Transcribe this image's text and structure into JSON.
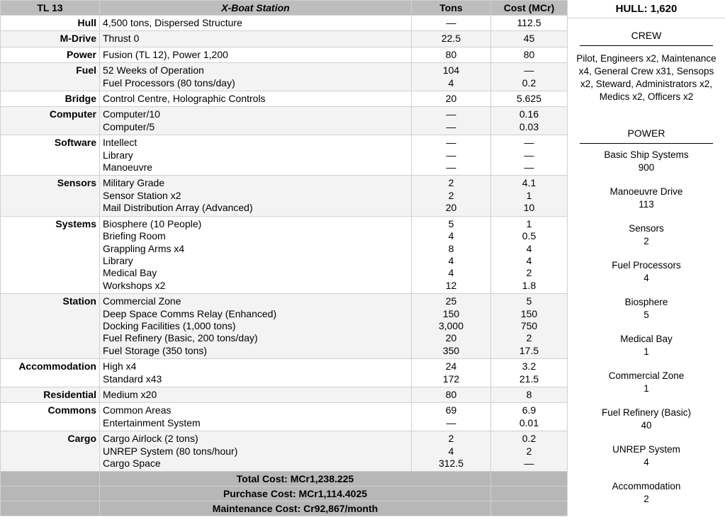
{
  "header": {
    "tl": "TL 13",
    "title": "X-Boat Station",
    "tons": "Tons",
    "cost": "Cost (MCr)"
  },
  "rows": [
    {
      "label": "Hull",
      "items": [
        {
          "desc": "4,500 tons, Dispersed Structure",
          "tons": "—",
          "cost": "112.5"
        }
      ]
    },
    {
      "label": "M-Drive",
      "items": [
        {
          "desc": "Thrust 0",
          "tons": "22.5",
          "cost": "45"
        }
      ]
    },
    {
      "label": "Power",
      "items": [
        {
          "desc": "Fusion (TL 12), Power 1,200",
          "tons": "80",
          "cost": "80"
        }
      ]
    },
    {
      "label": "Fuel",
      "items": [
        {
          "desc": "52 Weeks of Operation",
          "tons": "104",
          "cost": "—"
        },
        {
          "desc": "Fuel Processors (80 tons/day)",
          "tons": "4",
          "cost": "0.2"
        }
      ]
    },
    {
      "label": "Bridge",
      "items": [
        {
          "desc": "Control Centre, Holographic Controls",
          "tons": "20",
          "cost": "5.625"
        }
      ]
    },
    {
      "label": "Computer",
      "items": [
        {
          "desc": "Computer/10",
          "tons": "—",
          "cost": "0.16"
        },
        {
          "desc": "Computer/5",
          "tons": "—",
          "cost": "0.03"
        }
      ]
    },
    {
      "label": "Software",
      "items": [
        {
          "desc": "Intellect",
          "tons": "—",
          "cost": "—"
        },
        {
          "desc": "Library",
          "tons": "—",
          "cost": "—"
        },
        {
          "desc": "Manoeuvre",
          "tons": "—",
          "cost": "—"
        }
      ]
    },
    {
      "label": "Sensors",
      "items": [
        {
          "desc": "Military Grade",
          "tons": "2",
          "cost": "4.1"
        },
        {
          "desc": "Sensor Station x2",
          "tons": "2",
          "cost": "1"
        },
        {
          "desc": "Mail Distribution Array (Advanced)",
          "tons": "20",
          "cost": "10"
        }
      ]
    },
    {
      "label": "Systems",
      "items": [
        {
          "desc": "Biosphere (10 People)",
          "tons": "5",
          "cost": "1"
        },
        {
          "desc": "Briefing Room",
          "tons": "4",
          "cost": "0.5"
        },
        {
          "desc": "Grappling Arms x4",
          "tons": "8",
          "cost": "4"
        },
        {
          "desc": "Library",
          "tons": "4",
          "cost": "4"
        },
        {
          "desc": "Medical Bay",
          "tons": "4",
          "cost": "2"
        },
        {
          "desc": "Workshops x2",
          "tons": "12",
          "cost": "1.8"
        }
      ]
    },
    {
      "label": "Station",
      "items": [
        {
          "desc": "Commercial Zone",
          "tons": "25",
          "cost": "5"
        },
        {
          "desc": "Deep Space Comms Relay (Enhanced)",
          "tons": "150",
          "cost": "150"
        },
        {
          "desc": "Docking Facilities (1,000 tons)",
          "tons": "3,000",
          "cost": "750"
        },
        {
          "desc": "Fuel Refinery (Basic, 200 tons/day)",
          "tons": "20",
          "cost": "2"
        },
        {
          "desc": "Fuel Storage (350 tons)",
          "tons": "350",
          "cost": "17.5"
        }
      ]
    },
    {
      "label": "Accommodation",
      "items": [
        {
          "desc": "High x4",
          "tons": "24",
          "cost": "3.2"
        },
        {
          "desc": "Standard x43",
          "tons": "172",
          "cost": "21.5"
        }
      ]
    },
    {
      "label": "Residential",
      "items": [
        {
          "desc": "Medium x20",
          "tons": "80",
          "cost": "8"
        }
      ]
    },
    {
      "label": "Commons",
      "items": [
        {
          "desc": "Common Areas",
          "tons": "69",
          "cost": "6.9"
        },
        {
          "desc": "Entertainment System",
          "tons": "—",
          "cost": "0.01"
        }
      ]
    },
    {
      "label": "Cargo",
      "items": [
        {
          "desc": "Cargo Airlock (2 tons)",
          "tons": "2",
          "cost": "0.2"
        },
        {
          "desc": "UNREP System (80 tons/hour)",
          "tons": "4",
          "cost": "2"
        },
        {
          "desc": "Cargo Space",
          "tons": "312.5",
          "cost": "—"
        }
      ]
    }
  ],
  "footer": [
    "Total Cost: MCr1,238.225",
    "Purchase Cost: MCr1,114.4025",
    "Maintenance Cost: Cr92,867/month"
  ],
  "side": {
    "hull": "HULL: 1,620",
    "crew_title": "CREW",
    "crew": "Pilot, Engineers x2, Maintenance x4, General Crew x31, Sensops x2, Steward, Administrators x2, Medics x2, Officers x2",
    "power_title": "POWER",
    "power": [
      {
        "name": "Basic Ship Systems",
        "value": "900"
      },
      {
        "name": "Manoeuvre Drive",
        "value": "113"
      },
      {
        "name": "Sensors",
        "value": "2"
      },
      {
        "name": "Fuel Processors",
        "value": "4"
      },
      {
        "name": "Biosphere",
        "value": "5"
      },
      {
        "name": "Medical Bay",
        "value": "1"
      },
      {
        "name": "Commercial Zone",
        "value": "1"
      },
      {
        "name": "Fuel Refinery (Basic)",
        "value": "40"
      },
      {
        "name": "UNREP System",
        "value": "4"
      },
      {
        "name": "Accommodation",
        "value": "2"
      }
    ]
  }
}
